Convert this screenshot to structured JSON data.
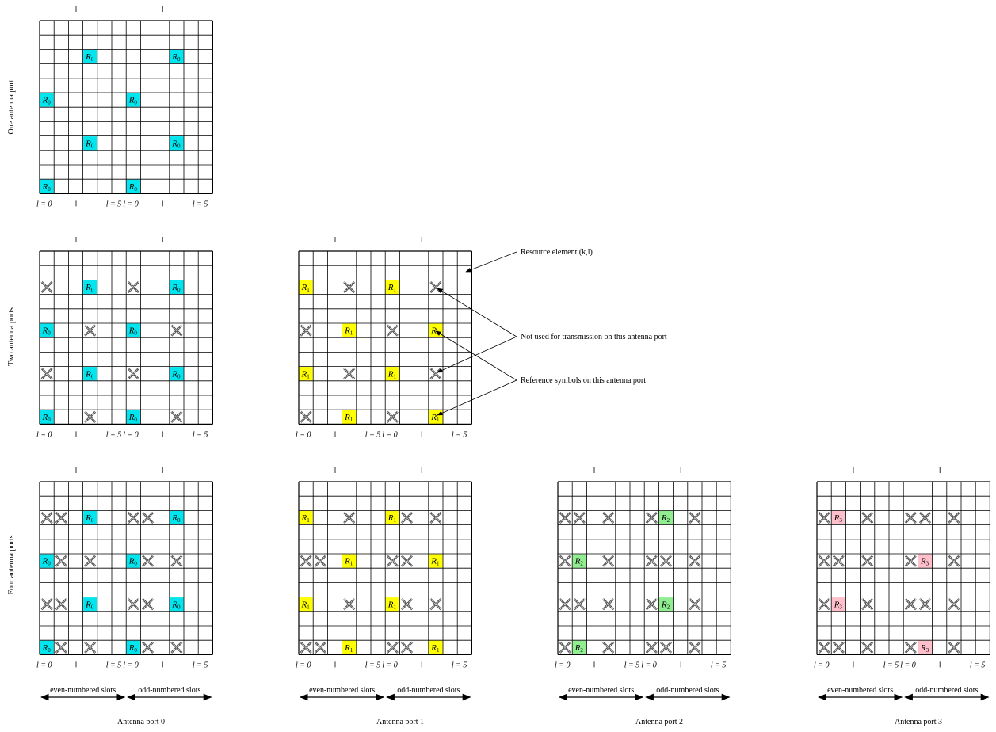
{
  "row_labels": {
    "one": "One antenna port",
    "two": "Two antenna ports",
    "four": "Four antenna ports"
  },
  "l_labels": {
    "l0": "l = 0",
    "l5": "l = 5"
  },
  "slot_labels": {
    "even": "even-numbered slots",
    "odd": "odd-numbered slots"
  },
  "port_titles": [
    "Antenna port 0",
    "Antenna port 1",
    "Antenna port 2",
    "Antenna port 3"
  ],
  "annotations": {
    "resource_element": "Resource element (k,l)",
    "not_used": "Not used for transmission on this antenna port",
    "reference": "Reference symbols on this antenna port"
  },
  "symbols": {
    "R0": {
      "letter": "R",
      "sub": "0",
      "color": "#00e5ee"
    },
    "R1": {
      "letter": "R",
      "sub": "1",
      "color": "#ffff00"
    },
    "R2": {
      "letter": "R",
      "sub": "2",
      "color": "#90ee90"
    },
    "R3": {
      "letter": "R",
      "sub": "3",
      "color": "#ffc0cb"
    }
  },
  "grid": {
    "rows": 12,
    "cols": 12
  },
  "panels": [
    {
      "id": "one-port0",
      "ref_sym": "R0",
      "refs": [
        [
          2,
          3
        ],
        [
          2,
          9
        ],
        [
          5,
          0
        ],
        [
          5,
          6
        ],
        [
          8,
          3
        ],
        [
          8,
          9
        ],
        [
          11,
          0
        ],
        [
          11,
          6
        ]
      ],
      "unused": []
    },
    {
      "id": "two-port0",
      "ref_sym": "R0",
      "refs": [
        [
          2,
          3
        ],
        [
          2,
          9
        ],
        [
          5,
          0
        ],
        [
          5,
          6
        ],
        [
          8,
          3
        ],
        [
          8,
          9
        ],
        [
          11,
          0
        ],
        [
          11,
          6
        ]
      ],
      "unused": [
        [
          2,
          0
        ],
        [
          2,
          6
        ],
        [
          5,
          3
        ],
        [
          5,
          9
        ],
        [
          8,
          0
        ],
        [
          8,
          6
        ],
        [
          11,
          3
        ],
        [
          11,
          9
        ]
      ]
    },
    {
      "id": "two-port1",
      "ref_sym": "R1",
      "refs": [
        [
          2,
          0
        ],
        [
          2,
          6
        ],
        [
          5,
          3
        ],
        [
          5,
          9
        ],
        [
          8,
          0
        ],
        [
          8,
          6
        ],
        [
          11,
          3
        ],
        [
          11,
          9
        ]
      ],
      "unused": [
        [
          2,
          3
        ],
        [
          2,
          9
        ],
        [
          5,
          0
        ],
        [
          5,
          6
        ],
        [
          8,
          3
        ],
        [
          8,
          9
        ],
        [
          11,
          0
        ],
        [
          11,
          6
        ]
      ]
    },
    {
      "id": "four-port0",
      "ref_sym": "R0",
      "refs": [
        [
          2,
          3
        ],
        [
          2,
          9
        ],
        [
          5,
          0
        ],
        [
          5,
          6
        ],
        [
          8,
          3
        ],
        [
          8,
          9
        ],
        [
          11,
          0
        ],
        [
          11,
          6
        ]
      ],
      "unused": [
        [
          2,
          0
        ],
        [
          2,
          1
        ],
        [
          2,
          6
        ],
        [
          2,
          7
        ],
        [
          5,
          1
        ],
        [
          5,
          3
        ],
        [
          5,
          7
        ],
        [
          5,
          9
        ],
        [
          8,
          0
        ],
        [
          8,
          1
        ],
        [
          8,
          6
        ],
        [
          8,
          7
        ],
        [
          11,
          1
        ],
        [
          11,
          3
        ],
        [
          11,
          7
        ],
        [
          11,
          9
        ]
      ]
    },
    {
      "id": "four-port1",
      "ref_sym": "R1",
      "refs": [
        [
          2,
          0
        ],
        [
          2,
          6
        ],
        [
          5,
          3
        ],
        [
          5,
          9
        ],
        [
          8,
          0
        ],
        [
          8,
          6
        ],
        [
          11,
          3
        ],
        [
          11,
          9
        ]
      ],
      "unused": [
        [
          2,
          3
        ],
        [
          2,
          7
        ],
        [
          2,
          9
        ],
        [
          5,
          0
        ],
        [
          5,
          1
        ],
        [
          5,
          6
        ],
        [
          5,
          7
        ],
        [
          8,
          3
        ],
        [
          8,
          7
        ],
        [
          8,
          9
        ],
        [
          11,
          0
        ],
        [
          11,
          1
        ],
        [
          11,
          6
        ],
        [
          11,
          7
        ]
      ]
    },
    {
      "id": "four-port2",
      "ref_sym": "R2",
      "refs": [
        [
          2,
          7
        ],
        [
          5,
          1
        ],
        [
          8,
          7
        ],
        [
          11,
          1
        ]
      ],
      "unused": [
        [
          2,
          0
        ],
        [
          2,
          1
        ],
        [
          2,
          3
        ],
        [
          2,
          6
        ],
        [
          2,
          9
        ],
        [
          5,
          0
        ],
        [
          5,
          3
        ],
        [
          5,
          6
        ],
        [
          5,
          7
        ],
        [
          5,
          9
        ],
        [
          8,
          0
        ],
        [
          8,
          1
        ],
        [
          8,
          3
        ],
        [
          8,
          6
        ],
        [
          8,
          9
        ],
        [
          11,
          0
        ],
        [
          11,
          3
        ],
        [
          11,
          6
        ],
        [
          11,
          7
        ],
        [
          11,
          9
        ]
      ]
    },
    {
      "id": "four-port3",
      "ref_sym": "R3",
      "refs": [
        [
          2,
          1
        ],
        [
          5,
          7
        ],
        [
          8,
          1
        ],
        [
          11,
          7
        ]
      ],
      "unused": [
        [
          2,
          0
        ],
        [
          2,
          3
        ],
        [
          2,
          6
        ],
        [
          2,
          7
        ],
        [
          2,
          9
        ],
        [
          5,
          0
        ],
        [
          5,
          1
        ],
        [
          5,
          3
        ],
        [
          5,
          6
        ],
        [
          5,
          9
        ],
        [
          8,
          0
        ],
        [
          8,
          3
        ],
        [
          8,
          6
        ],
        [
          8,
          7
        ],
        [
          8,
          9
        ],
        [
          11,
          0
        ],
        [
          11,
          1
        ],
        [
          11,
          3
        ],
        [
          11,
          6
        ],
        [
          11,
          9
        ]
      ]
    }
  ]
}
